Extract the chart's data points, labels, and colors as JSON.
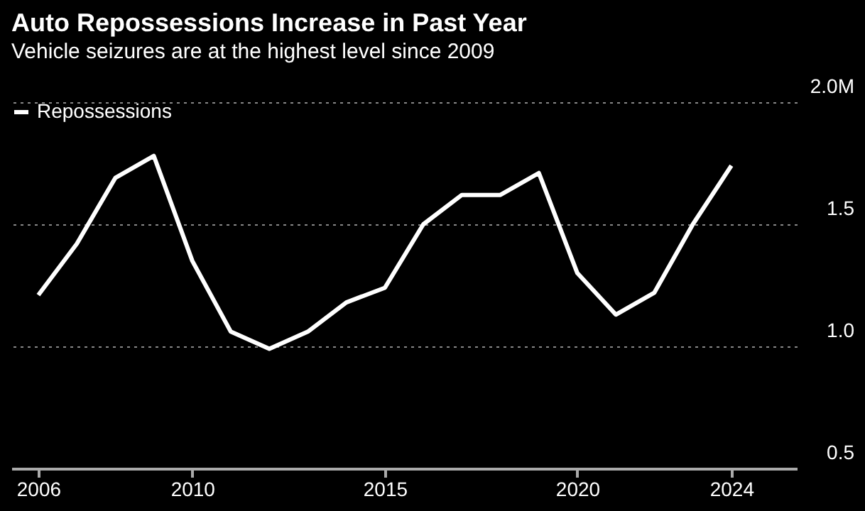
{
  "chart_data": {
    "type": "line",
    "title": "Auto Repossessions Increase in Past Year",
    "subtitle": "Vehicle seizures are at the highest level since 2009",
    "x": [
      2006,
      2007,
      2008,
      2009,
      2010,
      2011,
      2012,
      2013,
      2014,
      2015,
      2016,
      2017,
      2018,
      2019,
      2020,
      2021,
      2022,
      2023,
      2024
    ],
    "series": [
      {
        "name": "Repossessions",
        "color": "#ffffff",
        "values": [
          1.21,
          1.42,
          1.69,
          1.78,
          1.35,
          1.06,
          0.99,
          1.06,
          1.18,
          1.24,
          1.5,
          1.62,
          1.62,
          1.71,
          1.3,
          1.13,
          1.22,
          1.5,
          1.74
        ]
      }
    ],
    "xlim": [
      2005.3,
      2025.7
    ],
    "xticks": [
      2006,
      2010,
      2015,
      2020,
      2024
    ],
    "ylim": [
      0.5,
      2.0
    ],
    "yticks": [
      0.5,
      {
        "value": 1.0,
        "label": "1.0"
      },
      1.5,
      {
        "value": 2.0,
        "label": "2.0M"
      }
    ],
    "grid": "y",
    "legend": "top left",
    "line_style": "solid",
    "marker": "none"
  }
}
